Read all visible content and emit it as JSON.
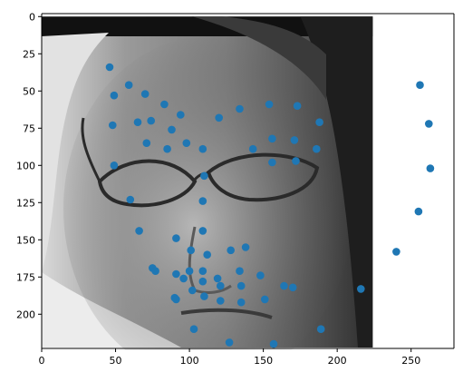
{
  "chart_data": {
    "type": "scatter",
    "title": "",
    "xlabel": "",
    "ylabel": "",
    "xlim": [
      0,
      279
    ],
    "ylim": [
      223,
      -2
    ],
    "y_inverted": true,
    "grid": false,
    "background_image": {
      "subject": "grayscale-face-photo-with-glasses",
      "extent_x": [
        0,
        224
      ],
      "extent_y": [
        224,
        0
      ]
    },
    "x_ticks": [
      {
        "value": 0,
        "label": "0"
      },
      {
        "value": 50,
        "label": "50"
      },
      {
        "value": 100,
        "label": "100"
      },
      {
        "value": 150,
        "label": "150"
      },
      {
        "value": 200,
        "label": "200"
      },
      {
        "value": 250,
        "label": "250"
      }
    ],
    "y_ticks": [
      {
        "value": 0,
        "label": "0"
      },
      {
        "value": 25,
        "label": "25"
      },
      {
        "value": 50,
        "label": "50"
      },
      {
        "value": 75,
        "label": "75"
      },
      {
        "value": 100,
        "label": "100"
      },
      {
        "value": 125,
        "label": "125"
      },
      {
        "value": 150,
        "label": "150"
      },
      {
        "value": 175,
        "label": "175"
      },
      {
        "value": 200,
        "label": "200"
      }
    ],
    "series": [
      {
        "color": "#1f77b4",
        "marker": "circle",
        "points": [
          {
            "x": 46,
            "y": 34
          },
          {
            "x": 49,
            "y": 53
          },
          {
            "x": 48,
            "y": 73
          },
          {
            "x": 49,
            "y": 100
          },
          {
            "x": 60,
            "y": 123
          },
          {
            "x": 66,
            "y": 144
          },
          {
            "x": 75,
            "y": 169
          },
          {
            "x": 90,
            "y": 189
          },
          {
            "x": 103,
            "y": 210
          },
          {
            "x": 127,
            "y": 219
          },
          {
            "x": 157,
            "y": 220
          },
          {
            "x": 189,
            "y": 210
          },
          {
            "x": 216,
            "y": 183
          },
          {
            "x": 240,
            "y": 158
          },
          {
            "x": 255,
            "y": 131
          },
          {
            "x": 263,
            "y": 102
          },
          {
            "x": 262,
            "y": 72
          },
          {
            "x": 256,
            "y": 46
          },
          {
            "x": 59,
            "y": 46
          },
          {
            "x": 70,
            "y": 52
          },
          {
            "x": 83,
            "y": 59
          },
          {
            "x": 94,
            "y": 66
          },
          {
            "x": 120,
            "y": 68
          },
          {
            "x": 134,
            "y": 62
          },
          {
            "x": 154,
            "y": 59
          },
          {
            "x": 173,
            "y": 60
          },
          {
            "x": 188,
            "y": 71
          },
          {
            "x": 65,
            "y": 71
          },
          {
            "x": 74,
            "y": 70
          },
          {
            "x": 71,
            "y": 85
          },
          {
            "x": 88,
            "y": 76
          },
          {
            "x": 98,
            "y": 85
          },
          {
            "x": 85,
            "y": 89
          },
          {
            "x": 109,
            "y": 89
          },
          {
            "x": 110,
            "y": 107
          },
          {
            "x": 109,
            "y": 124
          },
          {
            "x": 109,
            "y": 144
          },
          {
            "x": 143,
            "y": 89
          },
          {
            "x": 156,
            "y": 82
          },
          {
            "x": 171,
            "y": 83
          },
          {
            "x": 186,
            "y": 89
          },
          {
            "x": 172,
            "y": 97
          },
          {
            "x": 156,
            "y": 98
          },
          {
            "x": 91,
            "y": 149
          },
          {
            "x": 101,
            "y": 157
          },
          {
            "x": 112,
            "y": 160
          },
          {
            "x": 128,
            "y": 157
          },
          {
            "x": 138,
            "y": 155
          },
          {
            "x": 77,
            "y": 171
          },
          {
            "x": 91,
            "y": 173
          },
          {
            "x": 96,
            "y": 176
          },
          {
            "x": 100,
            "y": 171
          },
          {
            "x": 109,
            "y": 171
          },
          {
            "x": 109,
            "y": 178
          },
          {
            "x": 119,
            "y": 176
          },
          {
            "x": 134,
            "y": 171
          },
          {
            "x": 148,
            "y": 174
          },
          {
            "x": 164,
            "y": 181
          },
          {
            "x": 170,
            "y": 182
          },
          {
            "x": 121,
            "y": 181
          },
          {
            "x": 135,
            "y": 181
          },
          {
            "x": 102,
            "y": 184
          },
          {
            "x": 91,
            "y": 190
          },
          {
            "x": 110,
            "y": 188
          },
          {
            "x": 121,
            "y": 191
          },
          {
            "x": 135,
            "y": 192
          },
          {
            "x": 151,
            "y": 190
          }
        ]
      }
    ]
  }
}
